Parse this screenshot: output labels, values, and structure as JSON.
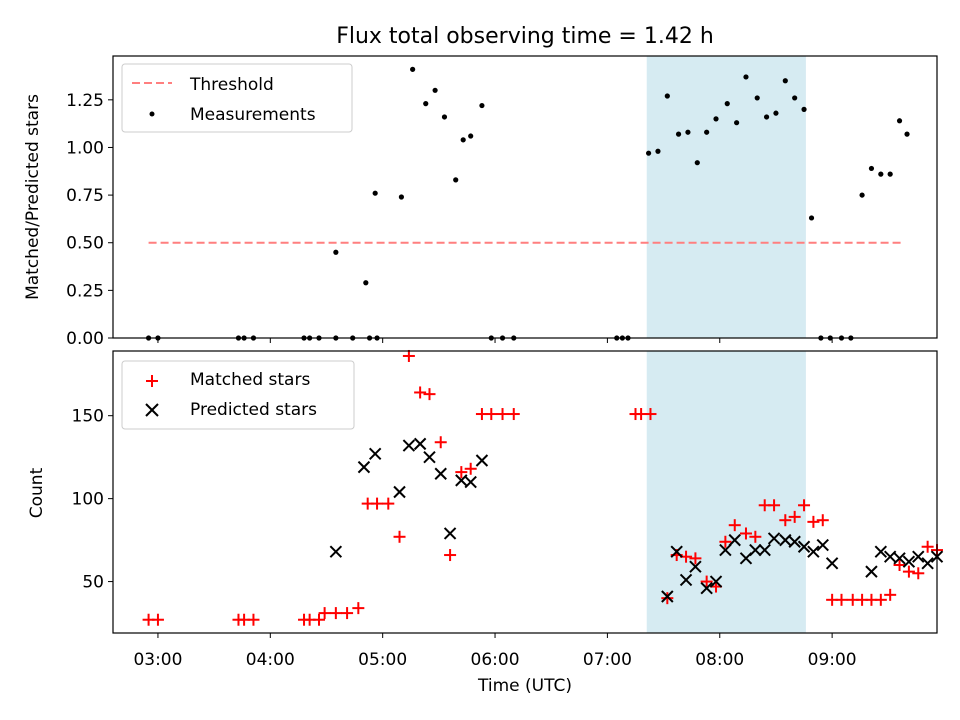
{
  "title": "Flux total observing time = 1.42 h",
  "colors": {
    "threshold": "#ff7f7f",
    "measurement": "#000000",
    "matched": "#ff0000",
    "predicted": "#000000",
    "highlight": "#add8e6"
  },
  "chart_data": [
    {
      "type": "scatter",
      "panel": "top",
      "ylabel": "Matched/Predicted stars",
      "ylim": [
        0.0,
        1.48
      ],
      "yticks": [
        "0.00",
        "0.25",
        "0.50",
        "0.75",
        "1.00",
        "1.25"
      ],
      "xlim": [
        "02:36",
        "09:56"
      ],
      "highlight_span": [
        "07:21",
        "08:46"
      ],
      "legend": {
        "placement": "upper-left",
        "entries": [
          "Threshold",
          "Measurements"
        ]
      },
      "threshold": {
        "name": "Threshold",
        "y": 0.5,
        "x": [
          "02:55",
          "09:37"
        ]
      },
      "series": [
        {
          "name": "Measurements",
          "points": [
            [
              "02:55",
              0
            ],
            [
              "03:00",
              0
            ],
            [
              "03:43",
              0
            ],
            [
              "03:46",
              0
            ],
            [
              "03:51",
              0
            ],
            [
              "04:18",
              0
            ],
            [
              "04:26",
              0
            ],
            [
              "04:21",
              0
            ],
            [
              "04:35",
              0
            ],
            [
              "04:44",
              0
            ],
            [
              "04:53",
              0
            ],
            [
              "04:57",
              0
            ],
            [
              "04:35",
              0.45
            ],
            [
              "04:51",
              0.29
            ],
            [
              "04:56",
              0.76
            ],
            [
              "05:10",
              0.74
            ],
            [
              "05:16",
              1.41
            ],
            [
              "05:23",
              1.23
            ],
            [
              "05:28",
              1.3
            ],
            [
              "05:33",
              1.16
            ],
            [
              "05:39",
              0.83
            ],
            [
              "05:43",
              1.04
            ],
            [
              "05:47",
              1.06
            ],
            [
              "05:53",
              1.22
            ],
            [
              "05:58",
              0
            ],
            [
              "06:04",
              0
            ],
            [
              "06:10",
              0
            ],
            [
              "07:05",
              0
            ],
            [
              "07:08",
              0
            ],
            [
              "07:11",
              0
            ],
            [
              "07:22",
              0.97
            ],
            [
              "07:27",
              0.98
            ],
            [
              "07:32",
              1.27
            ],
            [
              "07:38",
              1.07
            ],
            [
              "07:43",
              1.08
            ],
            [
              "07:48",
              0.92
            ],
            [
              "07:53",
              1.08
            ],
            [
              "07:58",
              1.15
            ],
            [
              "08:04",
              1.23
            ],
            [
              "08:09",
              1.13
            ],
            [
              "08:14",
              1.37
            ],
            [
              "08:20",
              1.26
            ],
            [
              "08:25",
              1.16
            ],
            [
              "08:30",
              1.18
            ],
            [
              "08:35",
              1.35
            ],
            [
              "08:40",
              1.26
            ],
            [
              "08:45",
              1.2
            ],
            [
              "08:49",
              0.63
            ],
            [
              "08:54",
              0
            ],
            [
              "08:59",
              0
            ],
            [
              "09:05",
              0
            ],
            [
              "09:10",
              0
            ],
            [
              "09:16",
              0.75
            ],
            [
              "09:21",
              0.89
            ],
            [
              "09:26",
              0.86
            ],
            [
              "09:31",
              0.86
            ],
            [
              "09:36",
              1.14
            ],
            [
              "09:40",
              1.07
            ]
          ]
        }
      ]
    },
    {
      "type": "scatter",
      "panel": "bottom",
      "ylabel": "Count",
      "xlabel": "Time (UTC)",
      "ylim": [
        19,
        189
      ],
      "yticks": [
        "50",
        "100",
        "150"
      ],
      "xlim": [
        "02:36",
        "09:56"
      ],
      "xticks": [
        "03:00",
        "04:00",
        "05:00",
        "06:00",
        "07:00",
        "08:00",
        "09:00"
      ],
      "highlight_span": [
        "07:21",
        "08:46"
      ],
      "legend": {
        "placement": "upper-left",
        "entries": [
          "Matched stars",
          "Predicted stars"
        ]
      },
      "series": [
        {
          "name": "Matched stars",
          "points": [
            [
              "02:55",
              27
            ],
            [
              "03:00",
              27
            ],
            [
              "03:43",
              27
            ],
            [
              "03:46",
              27
            ],
            [
              "03:51",
              27
            ],
            [
              "04:18",
              27
            ],
            [
              "04:21",
              27
            ],
            [
              "04:26",
              27
            ],
            [
              "04:29",
              31
            ],
            [
              "04:35",
              31
            ],
            [
              "04:41",
              31
            ],
            [
              "04:47",
              34
            ],
            [
              "04:52",
              97
            ],
            [
              "04:57",
              97
            ],
            [
              "05:03",
              97
            ],
            [
              "05:09",
              77
            ],
            [
              "05:14",
              186
            ],
            [
              "05:20",
              164
            ],
            [
              "05:25",
              163
            ],
            [
              "05:31",
              134
            ],
            [
              "05:36",
              66
            ],
            [
              "05:42",
              116
            ],
            [
              "05:47",
              118
            ],
            [
              "05:53",
              151
            ],
            [
              "05:58",
              151
            ],
            [
              "06:04",
              151
            ],
            [
              "06:10",
              151
            ],
            [
              "07:15",
              151
            ],
            [
              "07:18",
              151
            ],
            [
              "07:23",
              151
            ],
            [
              "07:32",
              40
            ],
            [
              "07:37",
              66
            ],
            [
              "07:42",
              65
            ],
            [
              "07:47",
              64
            ],
            [
              "07:53",
              50
            ],
            [
              "07:58",
              47
            ],
            [
              "08:03",
              74
            ],
            [
              "08:08",
              84
            ],
            [
              "08:14",
              79
            ],
            [
              "08:19",
              77
            ],
            [
              "08:24",
              96
            ],
            [
              "08:29",
              96
            ],
            [
              "08:35",
              87
            ],
            [
              "08:40",
              89
            ],
            [
              "08:45",
              96
            ],
            [
              "08:50",
              86
            ],
            [
              "08:55",
              87
            ],
            [
              "09:00",
              39
            ],
            [
              "09:05",
              39
            ],
            [
              "09:11",
              39
            ],
            [
              "09:16",
              39
            ],
            [
              "09:21",
              39
            ],
            [
              "09:26",
              39
            ],
            [
              "09:31",
              42
            ],
            [
              "09:36",
              60
            ],
            [
              "09:41",
              56
            ],
            [
              "09:46",
              55
            ],
            [
              "09:51",
              71
            ],
            [
              "09:56",
              69
            ]
          ]
        },
        {
          "name": "Predicted stars",
          "points": [
            [
              "04:35",
              68
            ],
            [
              "04:50",
              119
            ],
            [
              "04:56",
              127
            ],
            [
              "05:09",
              104
            ],
            [
              "05:14",
              132
            ],
            [
              "05:20",
              133
            ],
            [
              "05:25",
              125
            ],
            [
              "05:31",
              115
            ],
            [
              "05:36",
              79
            ],
            [
              "05:42",
              111
            ],
            [
              "05:47",
              110
            ],
            [
              "05:53",
              123
            ],
            [
              "07:32",
              41
            ],
            [
              "07:37",
              68
            ],
            [
              "07:42",
              51
            ],
            [
              "07:47",
              59
            ],
            [
              "07:53",
              46
            ],
            [
              "07:58",
              50
            ],
            [
              "08:03",
              69
            ],
            [
              "08:08",
              75
            ],
            [
              "08:14",
              64
            ],
            [
              "08:19",
              69
            ],
            [
              "08:24",
              69
            ],
            [
              "08:29",
              76
            ],
            [
              "08:35",
              75
            ],
            [
              "08:40",
              74
            ],
            [
              "08:45",
              71
            ],
            [
              "08:50",
              68
            ],
            [
              "08:55",
              72
            ],
            [
              "09:00",
              61
            ],
            [
              "09:21",
              56
            ],
            [
              "09:26",
              68
            ],
            [
              "09:31",
              65
            ],
            [
              "09:36",
              64
            ],
            [
              "09:41",
              62
            ],
            [
              "09:46",
              65
            ],
            [
              "09:51",
              61
            ],
            [
              "09:56",
              65
            ]
          ]
        }
      ]
    }
  ]
}
